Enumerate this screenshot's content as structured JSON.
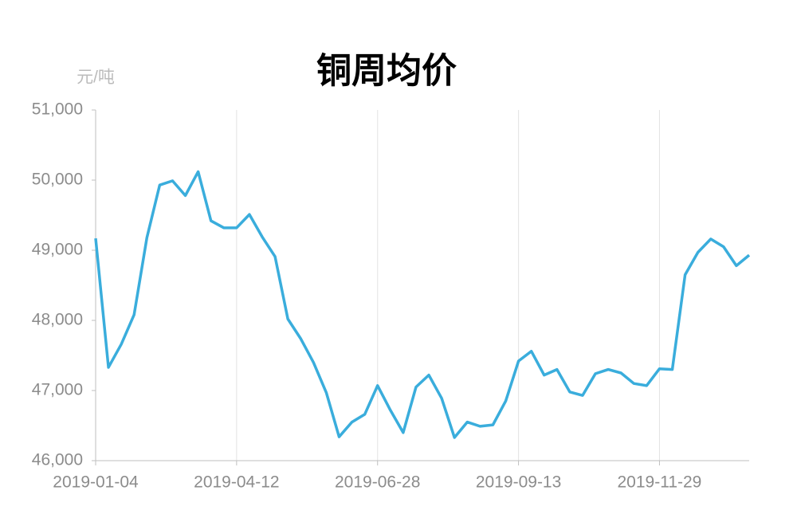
{
  "chart_data": {
    "type": "line",
    "title": "铜周均价",
    "y_unit": "元/吨",
    "categories": [
      "2019-01-04",
      null,
      null,
      null,
      null,
      null,
      null,
      null,
      null,
      null,
      null,
      "2019-04-12",
      null,
      null,
      null,
      null,
      null,
      null,
      null,
      null,
      null,
      null,
      "2019-06-28",
      null,
      null,
      null,
      null,
      null,
      null,
      null,
      null,
      null,
      null,
      "2019-09-13",
      null,
      null,
      null,
      null,
      null,
      null,
      null,
      null,
      null,
      null,
      "2019-11-29",
      null,
      null,
      null,
      null,
      null,
      null,
      null
    ],
    "series": [
      {
        "name": "铜周均价",
        "color": "#3aaddc",
        "values": [
          49170,
          47330,
          47660,
          48080,
          49180,
          49930,
          49990,
          49780,
          50120,
          49420,
          49320,
          49320,
          49510,
          49190,
          48910,
          48020,
          47740,
          47400,
          46970,
          46340,
          46550,
          46660,
          47070,
          46720,
          46400,
          47050,
          47220,
          46890,
          46330,
          46550,
          46490,
          46510,
          46850,
          47420,
          47560,
          47220,
          47300,
          46980,
          46930,
          47240,
          47300,
          47250,
          47100,
          47070,
          47310,
          47300,
          48650,
          48970,
          49160,
          49050,
          48780,
          48930
        ]
      }
    ],
    "ylim": [
      46000,
      51000
    ],
    "yticks": [
      {
        "value": 46000,
        "label": "46,000"
      },
      {
        "value": 47000,
        "label": "47,000"
      },
      {
        "value": 48000,
        "label": "48,000"
      },
      {
        "value": 49000,
        "label": "49,000"
      },
      {
        "value": 50000,
        "label": "50,000"
      },
      {
        "value": 51000,
        "label": "51,000"
      }
    ],
    "grid": true
  }
}
